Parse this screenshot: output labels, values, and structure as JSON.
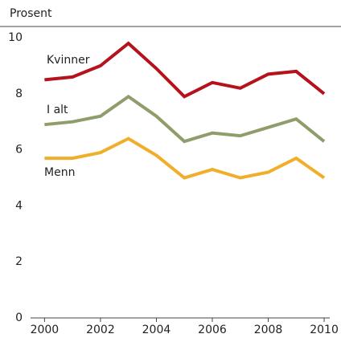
{
  "chart_data": {
    "type": "line",
    "y_label": "Prosent",
    "x": [
      2000,
      2001,
      2002,
      2003,
      2004,
      2005,
      2006,
      2007,
      2008,
      2009,
      2010
    ],
    "series": [
      {
        "name": "Kvinner",
        "color": "#b5121b",
        "values": [
          8.5,
          8.6,
          9.0,
          9.8,
          8.9,
          7.9,
          8.4,
          8.2,
          8.7,
          8.8,
          8.0
        ]
      },
      {
        "name": "I alt",
        "color": "#8f9d6a",
        "values": [
          6.9,
          7.0,
          7.2,
          7.9,
          7.2,
          6.3,
          6.6,
          6.5,
          6.8,
          7.1,
          6.3
        ]
      },
      {
        "name": "Menn",
        "color": "#f0ae2b",
        "values": [
          5.7,
          5.7,
          5.9,
          6.4,
          5.8,
          5.0,
          5.3,
          5.0,
          5.2,
          5.7,
          5.0
        ]
      }
    ],
    "xlim": [
      1999.5,
      2010.2
    ],
    "xticks": [
      2000,
      2002,
      2004,
      2006,
      2008,
      2010
    ],
    "ylim": [
      0,
      10
    ],
    "yticks": [
      0,
      2,
      4,
      6,
      8,
      10
    ],
    "grid": false
  }
}
